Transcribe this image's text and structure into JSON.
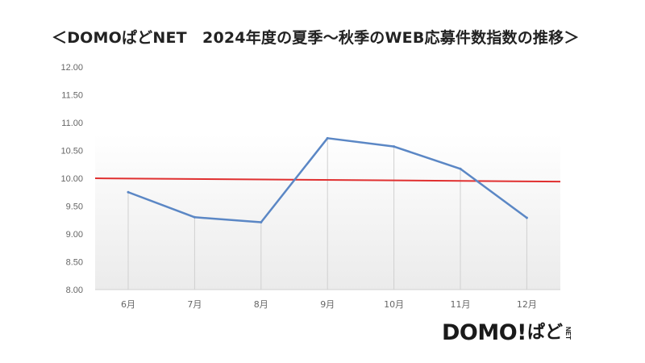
{
  "title": "＜DOMOぱどNET　2024年度の夏季～秋季のWEB応募件数指数の推移＞",
  "logo": {
    "word": "DOMO!",
    "suffix": "ぱど",
    "net": "NET"
  },
  "colors": {
    "series": "#5b87c5",
    "reference": "#e03030",
    "grid": "#d0d0d0",
    "plot_bg_top": "#ffffff",
    "plot_bg_bottom": "#ebebeb"
  },
  "chart_data": {
    "type": "line",
    "categories": [
      "6月",
      "7月",
      "8月",
      "9月",
      "10月",
      "11月",
      "12月"
    ],
    "series": [
      {
        "values": [
          9.75,
          9.3,
          9.21,
          10.72,
          10.57,
          10.17,
          9.29
        ]
      }
    ],
    "reference_line": {
      "start": 10.0,
      "end": 9.94
    },
    "ylim": [
      8.0,
      12.0
    ],
    "yticks": [
      "8.00",
      "8.50",
      "9.00",
      "9.50",
      "10.00",
      "10.50",
      "11.00",
      "11.50",
      "12.00"
    ],
    "xlabel": "",
    "ylabel": "",
    "grid": "vertical"
  }
}
